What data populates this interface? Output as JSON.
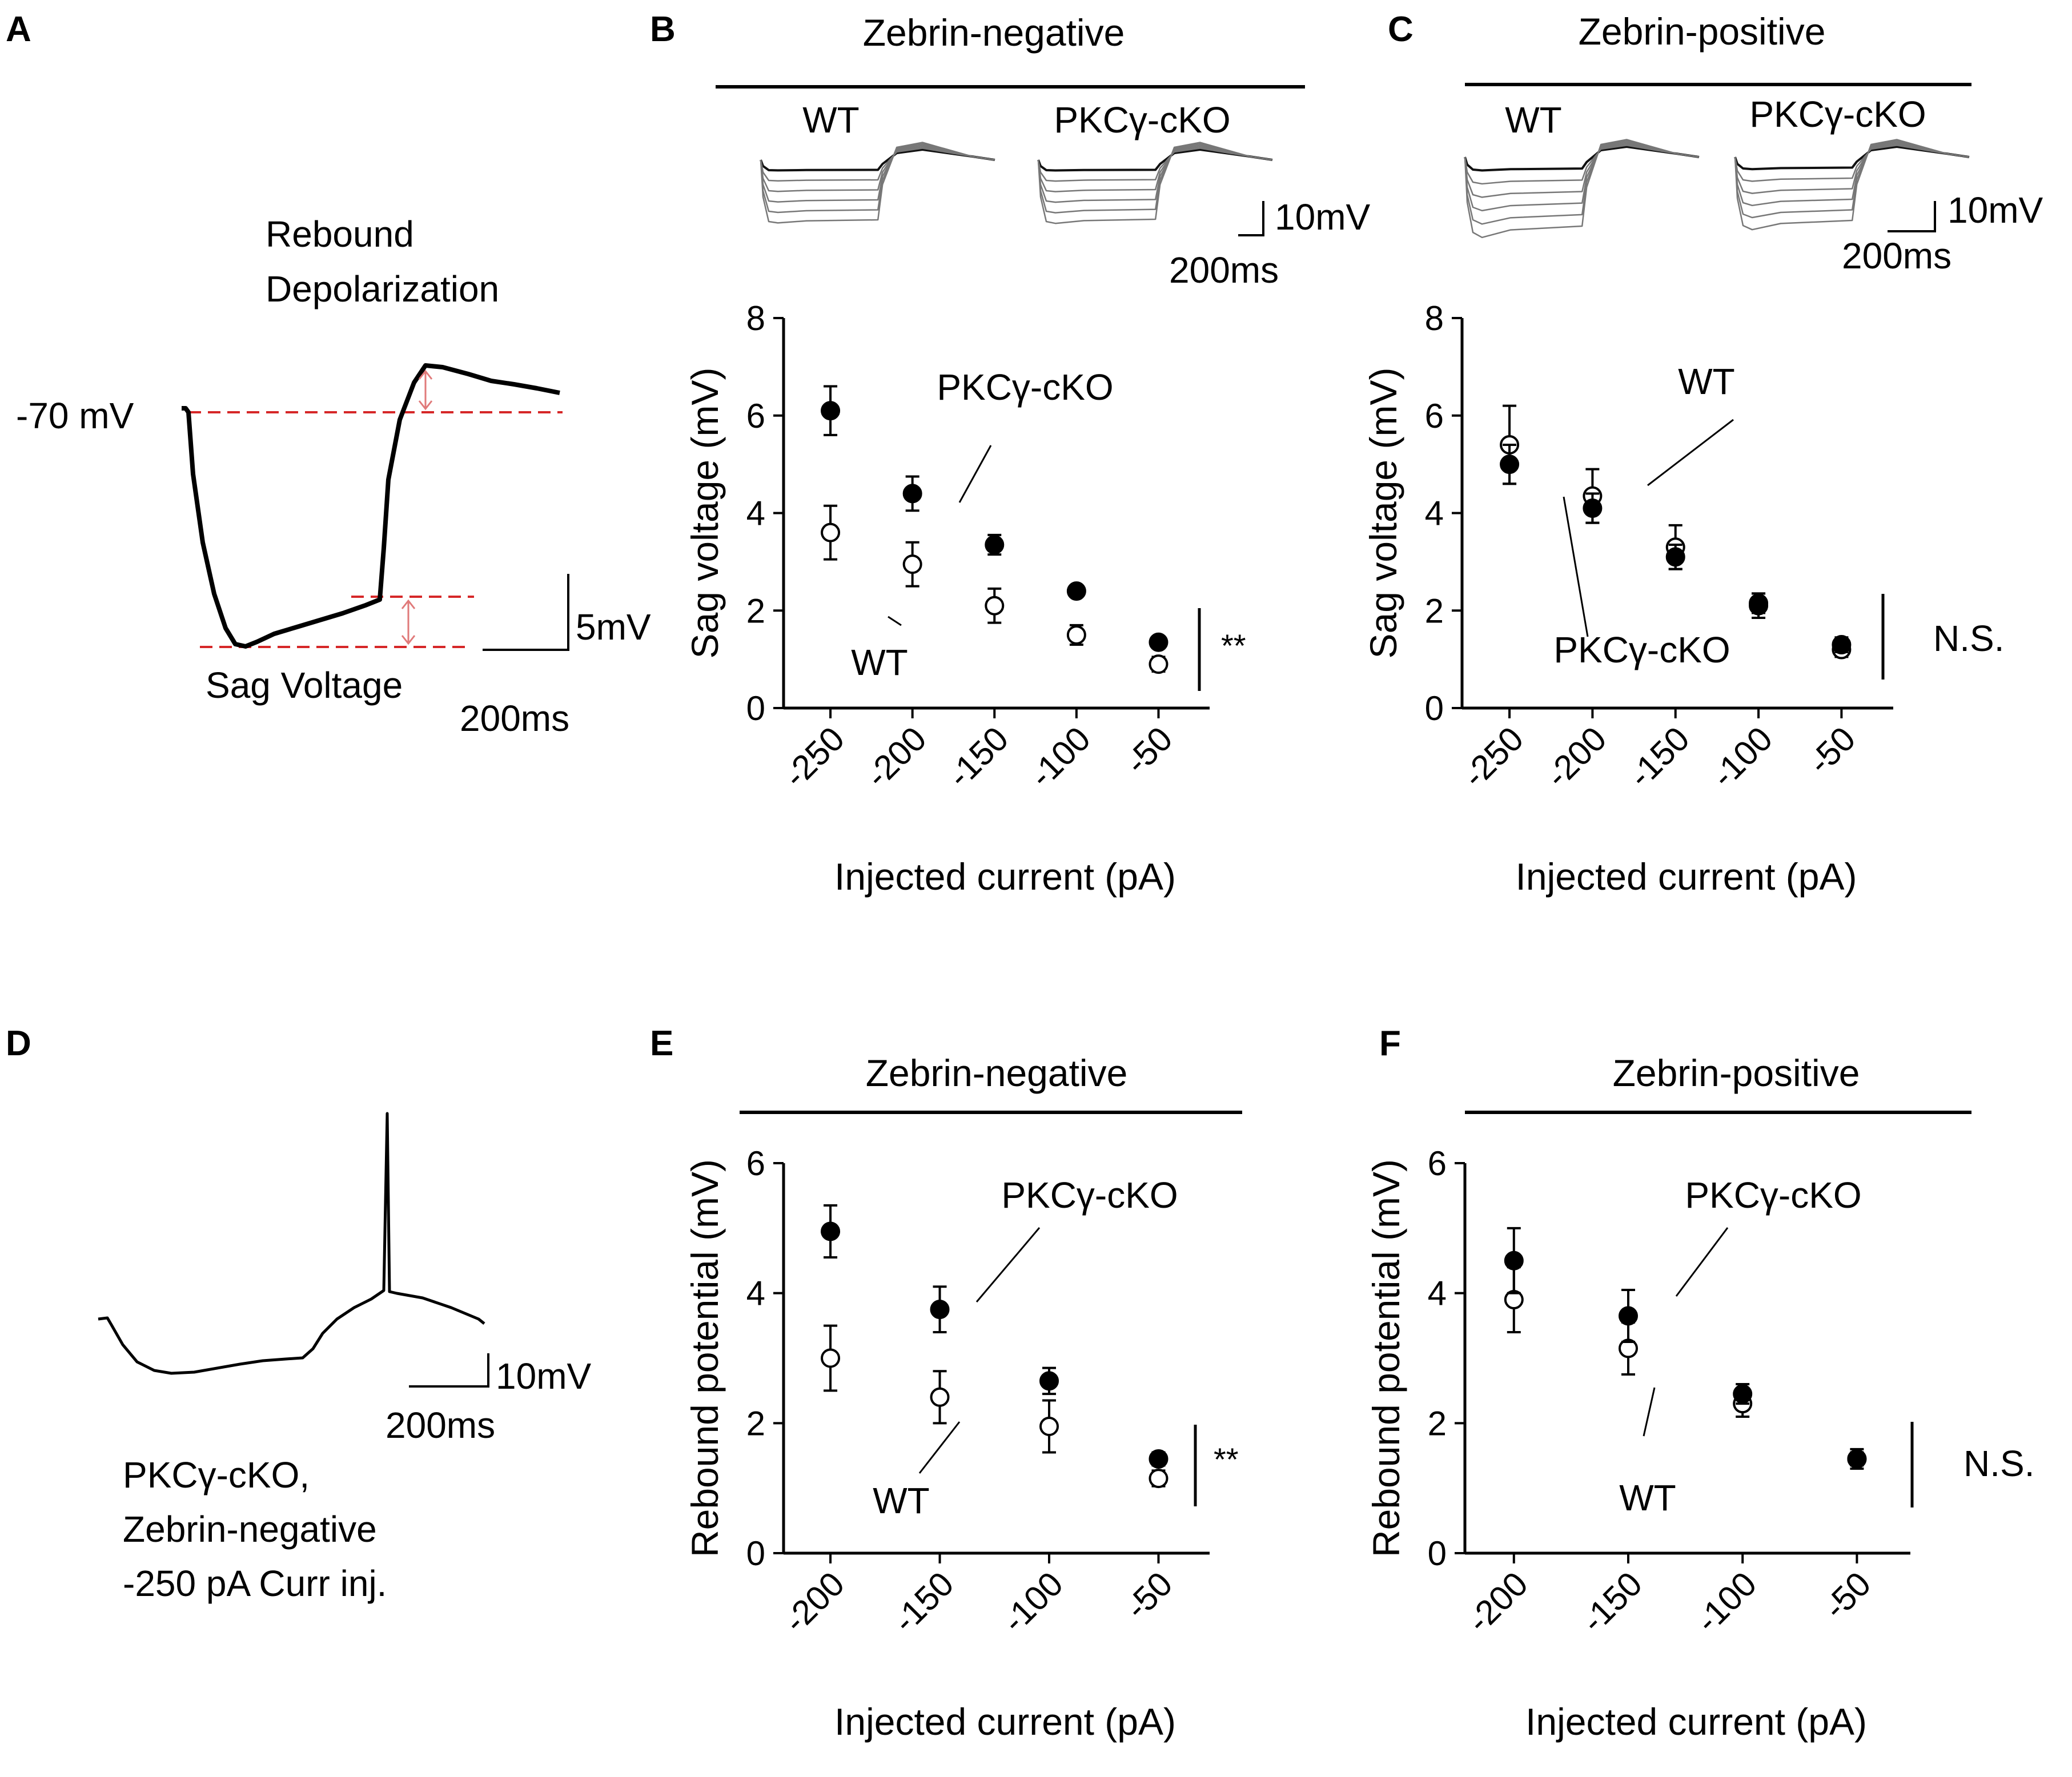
{
  "panels": {
    "A": {
      "letter": "A",
      "rebound_label_1": "Rebound",
      "rebound_label_2": "Depolarization",
      "resting_label": "-70 mV",
      "sag_label": "Sag Voltage",
      "scale_v": "5mV",
      "scale_t": "200ms"
    },
    "B": {
      "letter": "B",
      "group_header": "Zebrin-negative",
      "trace_wt": "WT",
      "trace_ko": "PKCγ-cKO",
      "scale_v": "10mV",
      "scale_t": "200ms"
    },
    "C": {
      "letter": "C",
      "group_header": "Zebrin-positive",
      "trace_wt": "WT",
      "trace_ko": "PKCγ-cKO",
      "scale_v": "10mV",
      "scale_t": "200ms"
    },
    "D": {
      "letter": "D",
      "scale_v": "10mV",
      "scale_t": "200ms",
      "caption_1": "PKCγ-cKO,",
      "caption_2": "Zebrin-negative",
      "caption_3": "-250 pA Curr inj."
    },
    "E": {
      "letter": "E",
      "group_header": "Zebrin-negative"
    },
    "F": {
      "letter": "F",
      "group_header": "Zebrin-positive"
    }
  },
  "chart_data": [
    {
      "panel": "B",
      "type": "scatter",
      "xlabel": "Injected current (pA)",
      "ylabel": "Sag voltage (mV)",
      "categories": [
        "-250",
        "-200",
        "-150",
        "-100",
        "-50"
      ],
      "ylim": [
        0,
        8
      ],
      "yticks": [
        "0",
        "2",
        "4",
        "6",
        "8"
      ],
      "series": [
        {
          "name": "PKCγ-cKO",
          "marker": "filled",
          "values": [
            6.1,
            4.4,
            3.35,
            2.4,
            1.35
          ],
          "errors": [
            0.5,
            0.35,
            0.2,
            0.1,
            0.12
          ]
        },
        {
          "name": "WT",
          "marker": "open",
          "values": [
            3.6,
            2.95,
            2.1,
            1.5,
            0.9
          ],
          "errors": [
            0.55,
            0.45,
            0.35,
            0.2,
            0.15
          ]
        }
      ],
      "annotations": {
        "ko_label": "PKCγ-cKO",
        "wt_label": "WT",
        "significance": "**"
      }
    },
    {
      "panel": "C",
      "type": "scatter",
      "xlabel": "Injected current (pA)",
      "ylabel": "Sag voltage (mV)",
      "categories": [
        "-250",
        "-200",
        "-150",
        "-100",
        "-50"
      ],
      "ylim": [
        0,
        8
      ],
      "yticks": [
        "0",
        "2",
        "4",
        "6",
        "8"
      ],
      "series": [
        {
          "name": "PKCγ-cKO",
          "marker": "filled",
          "values": [
            5.0,
            4.1,
            3.1,
            2.15,
            1.3
          ],
          "errors": [
            0.4,
            0.3,
            0.25,
            0.2,
            0.15
          ]
        },
        {
          "name": "WT",
          "marker": "open",
          "values": [
            5.4,
            4.35,
            3.3,
            2.1,
            1.2
          ],
          "errors": [
            0.8,
            0.55,
            0.45,
            0.25,
            0.15
          ]
        }
      ],
      "annotations": {
        "ko_label": "PKCγ-cKO",
        "wt_label": "WT",
        "significance": "N.S."
      }
    },
    {
      "panel": "E",
      "type": "scatter",
      "xlabel": "Injected current (pA)",
      "ylabel": "Rebound potential (mV)",
      "categories": [
        "-200",
        "-150",
        "-100",
        "-50"
      ],
      "ylim": [
        0,
        6
      ],
      "yticks": [
        "0",
        "2",
        "4",
        "6"
      ],
      "series": [
        {
          "name": "PKCγ-cKO",
          "marker": "filled",
          "values": [
            4.95,
            3.75,
            2.65,
            1.45
          ],
          "errors": [
            0.4,
            0.35,
            0.2,
            0.1
          ]
        },
        {
          "name": "WT",
          "marker": "open",
          "values": [
            3.0,
            2.4,
            1.95,
            1.15
          ],
          "errors": [
            0.5,
            0.4,
            0.4,
            0.12
          ]
        }
      ],
      "annotations": {
        "ko_label": "PKCγ-cKO",
        "wt_label": "WT",
        "significance": "**"
      }
    },
    {
      "panel": "F",
      "type": "scatter",
      "xlabel": "Injected current (pA)",
      "ylabel": "Rebound potential (mV)",
      "categories": [
        "-200",
        "-150",
        "-100",
        "-50"
      ],
      "ylim": [
        0,
        6
      ],
      "yticks": [
        "0",
        "2",
        "4",
        "6"
      ],
      "series": [
        {
          "name": "PKCγ-cKO",
          "marker": "filled",
          "values": [
            4.5,
            3.65,
            2.45,
            1.45
          ],
          "errors": [
            0.5,
            0.4,
            0.15,
            0.1
          ]
        },
        {
          "name": "WT",
          "marker": "open",
          "values": [
            3.9,
            3.15,
            2.3,
            1.45
          ],
          "errors": [
            0.5,
            0.4,
            0.2,
            0.15
          ]
        }
      ],
      "annotations": {
        "ko_label": "PKCγ-cKO",
        "wt_label": "WT",
        "significance": "N.S."
      }
    }
  ]
}
